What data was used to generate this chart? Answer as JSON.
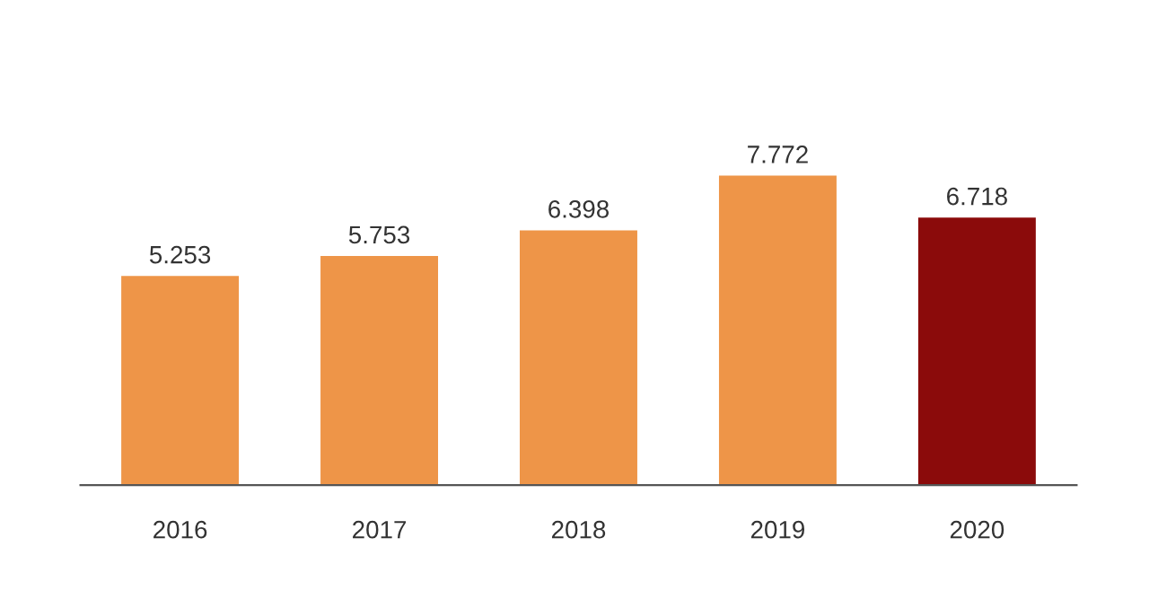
{
  "chart_data": {
    "type": "bar",
    "categories": [
      "2016",
      "2017",
      "2018",
      "2019",
      "2020"
    ],
    "values": [
      5.253,
      5.753,
      6.398,
      7.772,
      6.718
    ],
    "colors": [
      "#ee9548",
      "#ee9548",
      "#ee9548",
      "#ee9548",
      "#8b0b0b"
    ],
    "data_labels": true,
    "grid": false,
    "legend": false,
    "tick_labels": "x"
  }
}
